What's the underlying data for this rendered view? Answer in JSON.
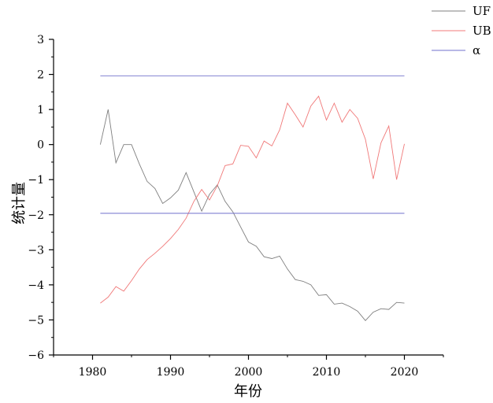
{
  "chart_data": {
    "type": "line",
    "title": "",
    "xlabel": "年份",
    "ylabel": "统计量",
    "xlim": [
      1975,
      2025
    ],
    "ylim": [
      -6,
      3
    ],
    "xticks": [
      1980,
      1990,
      2000,
      2010,
      2020
    ],
    "yticks": [
      3,
      2,
      1,
      0,
      -1,
      -2,
      -3,
      -4,
      -5,
      -6
    ],
    "xtick_labels": [
      "1980",
      "1990",
      "2000",
      "2010",
      "2020"
    ],
    "ytick_labels": [
      "3",
      "2",
      "1",
      "0",
      "−1",
      "−2",
      "−3",
      "−4",
      "−5",
      "−6"
    ],
    "grid": false,
    "legend_position": "top-right",
    "series": [
      {
        "name": "UF",
        "color": "#7f7f7f",
        "x": [
          1981,
          1982,
          1983,
          1984,
          1985,
          1986,
          1987,
          1988,
          1989,
          1990,
          1991,
          1992,
          1993,
          1994,
          1995,
          1996,
          1997,
          1998,
          1999,
          2000,
          2001,
          2002,
          2003,
          2004,
          2005,
          2006,
          2007,
          2008,
          2009,
          2010,
          2011,
          2012,
          2013,
          2014,
          2015,
          2016,
          2017,
          2018,
          2019,
          2020
        ],
        "y": [
          0.0,
          1.0,
          -0.52,
          0.0,
          0.0,
          -0.55,
          -1.05,
          -1.25,
          -1.68,
          -1.52,
          -1.3,
          -0.8,
          -1.35,
          -1.9,
          -1.42,
          -1.15,
          -1.62,
          -1.92,
          -2.35,
          -2.78,
          -2.9,
          -3.2,
          -3.25,
          -3.18,
          -3.55,
          -3.85,
          -3.9,
          -4.0,
          -4.3,
          -4.28,
          -4.55,
          -4.52,
          -4.62,
          -4.75,
          -5.02,
          -4.78,
          -4.68,
          -4.7,
          -4.5,
          -4.52
        ]
      },
      {
        "name": "UB",
        "color": "#f07878",
        "x": [
          1981,
          1982,
          1983,
          1984,
          1985,
          1986,
          1987,
          1988,
          1989,
          1990,
          1991,
          1992,
          1993,
          1994,
          1995,
          1996,
          1997,
          1998,
          1999,
          2000,
          2001,
          2002,
          2003,
          2004,
          2005,
          2006,
          2007,
          2008,
          2009,
          2010,
          2011,
          2012,
          2013,
          2014,
          2015,
          2016,
          2017,
          2018,
          2019,
          2020
        ],
        "y": [
          -4.52,
          -4.35,
          -4.05,
          -4.18,
          -3.88,
          -3.55,
          -3.28,
          -3.1,
          -2.9,
          -2.68,
          -2.42,
          -2.1,
          -1.62,
          -1.28,
          -1.58,
          -1.18,
          -0.6,
          -0.55,
          -0.02,
          -0.05,
          -0.38,
          0.1,
          -0.04,
          0.42,
          1.18,
          0.85,
          0.5,
          1.1,
          1.38,
          0.7,
          1.18,
          0.64,
          1.0,
          0.75,
          0.15,
          -0.98,
          0.05,
          0.53,
          -1.0,
          0.02
        ]
      },
      {
        "name": "α",
        "color": "#7070cc",
        "lines": [
          {
            "x": [
              1981,
              2020
            ],
            "y": [
              1.96,
              1.96
            ]
          },
          {
            "x": [
              1981,
              2020
            ],
            "y": [
              -1.96,
              -1.96
            ]
          }
        ]
      }
    ]
  }
}
